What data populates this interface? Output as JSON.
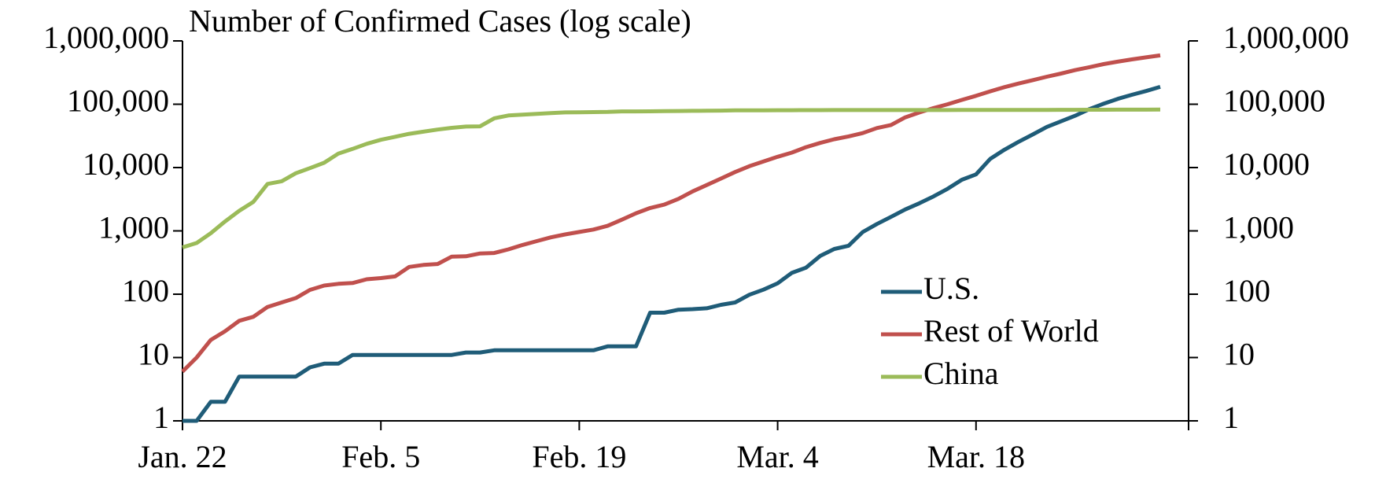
{
  "chart_data": {
    "type": "line",
    "title": "Number of Confirmed Cases (log scale)",
    "categories": [
      "Jan. 22",
      null,
      null,
      null,
      null,
      null,
      null,
      null,
      null,
      null,
      null,
      null,
      null,
      null,
      "Feb. 5",
      null,
      null,
      null,
      null,
      null,
      null,
      null,
      null,
      null,
      null,
      null,
      null,
      null,
      "Feb. 19",
      null,
      null,
      null,
      null,
      null,
      null,
      null,
      null,
      null,
      null,
      null,
      null,
      null,
      "Mar. 4",
      null,
      null,
      null,
      null,
      null,
      null,
      null,
      null,
      null,
      null,
      null,
      null,
      null,
      "Mar. 18",
      null,
      null,
      null,
      null,
      null,
      null,
      null,
      null,
      null,
      null,
      null,
      null,
      null
    ],
    "series": [
      {
        "name": "U.S.",
        "color": "#1f5c78",
        "values": [
          1,
          1,
          2,
          2,
          5,
          5,
          5,
          5,
          5,
          7,
          8,
          8,
          11,
          11,
          11,
          11,
          11,
          11,
          11,
          11,
          12,
          12,
          13,
          13,
          13,
          13,
          13,
          13,
          13,
          13,
          15,
          15,
          15,
          51,
          51,
          57,
          58,
          60,
          68,
          74,
          98,
          118,
          149,
          217,
          262,
          402,
          518,
          583,
          959,
          1281,
          1663,
          2179,
          2727,
          3499,
          4632,
          6421,
          7786,
          13680,
          19101,
          25493,
          33276,
          43847,
          53740,
          65778,
          83836,
          101657,
          121465,
          140909,
          161831,
          188172
        ]
      },
      {
        "name": "Rest of World",
        "color": "#c0504d",
        "values": [
          6,
          10,
          19,
          26,
          38,
          44,
          63,
          74,
          87,
          117,
          137,
          146,
          150,
          172,
          180,
          191,
          270,
          290,
          300,
          393,
          397,
          440,
          448,
          510,
          600,
          690,
          790,
          880,
          960,
          1050,
          1200,
          1500,
          1900,
          2300,
          2600,
          3200,
          4200,
          5300,
          6700,
          8500,
          10500,
          12500,
          14800,
          17200,
          21000,
          24500,
          28000,
          31000,
          35000,
          42000,
          47000,
          62000,
          74000,
          87000,
          100000,
          117000,
          136000,
          160000,
          186000,
          212000,
          240000,
          272000,
          305000,
          346000,
          385000,
          430000,
          470000,
          510000,
          550000,
          590000
        ]
      },
      {
        "name": "China",
        "color": "#9bbb59",
        "values": [
          548,
          643,
          920,
          1406,
          2075,
          2877,
          5509,
          6087,
          8141,
          9802,
          11891,
          16630,
          19716,
          23707,
          27440,
          30587,
          34110,
          36814,
          39829,
          42354,
          44386,
          44759,
          59895,
          66358,
          68413,
          70513,
          72434,
          74211,
          74619,
          75077,
          75550,
          77001,
          77022,
          77241,
          77754,
          78166,
          78600,
          78928,
          79356,
          79932,
          80136,
          80261,
          80386,
          80537,
          80690,
          80770,
          80823,
          80860,
          80887,
          80921,
          80932,
          80945,
          80977,
          81003,
          81033,
          81058,
          81102,
          81156,
          81250,
          81305,
          81435,
          81498,
          81591,
          81661,
          81782,
          81897,
          81999,
          82122,
          82198,
          82279
        ]
      }
    ],
    "ylim": [
      1,
      1000000
    ],
    "yticks": [
      1,
      10,
      100,
      {
        "value": 1000,
        "label": "1,000"
      },
      {
        "value": 10000,
        "label": "10,000"
      },
      {
        "value": 100000,
        "label": "100,000"
      },
      {
        "value": 1000000,
        "label": "1,000,000"
      }
    ],
    "y2lim": [
      1,
      1000000
    ],
    "y2ticks": [
      1,
      10,
      100,
      {
        "value": 1000,
        "label": "1,000"
      },
      {
        "value": 10000,
        "label": "10,000"
      },
      {
        "value": 100000,
        "label": "100,000"
      },
      {
        "value": 1000000,
        "label": "1,000,000"
      }
    ],
    "log_scale": true,
    "grid": false,
    "legend": "center right"
  }
}
